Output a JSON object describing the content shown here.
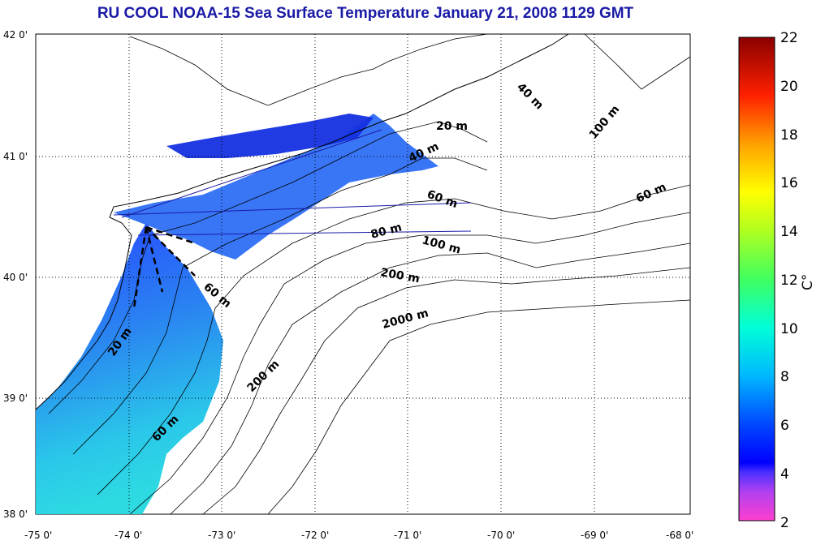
{
  "title": "RU COOL  NOAA-15 Sea Surface Temperature January 21, 2008 1129 GMT",
  "map": {
    "lat_ticks": [
      "42 0'",
      "41 0'",
      "40 0'",
      "39 0'",
      "38 0'"
    ],
    "lon_ticks": [
      "-75 0'",
      "-74 0'",
      "-73 0'",
      "-72 0'",
      "-71 0'",
      "-70 0'",
      "-69 0'",
      "-68 0'"
    ],
    "lat_range": [
      38,
      42
    ],
    "lon_range": [
      -75,
      -68
    ],
    "grid": "dotted"
  },
  "isobaths": [
    {
      "label": "20 m"
    },
    {
      "label": "40 m"
    },
    {
      "label": "60 m"
    },
    {
      "label": "80 m"
    },
    {
      "label": "100 m"
    },
    {
      "label": "200 m"
    },
    {
      "label": "2000 m"
    },
    {
      "label": "40 m"
    },
    {
      "label": "100 m"
    },
    {
      "label": "60 m"
    },
    {
      "label": "60 m"
    },
    {
      "label": "20 m"
    },
    {
      "label": "200 m"
    },
    {
      "label": "60 m"
    }
  ],
  "colorbar": {
    "ticks": [
      "22",
      "20",
      "18",
      "16",
      "14",
      "12",
      "10",
      "8",
      "6",
      "4",
      "2"
    ],
    "min": 2,
    "max": 22,
    "unit_label": "C°"
  },
  "colors": {
    "title": "#1a1aa6",
    "sst_nearshore": "#1c4bff",
    "sst_offshore": "#20c8e0"
  }
}
